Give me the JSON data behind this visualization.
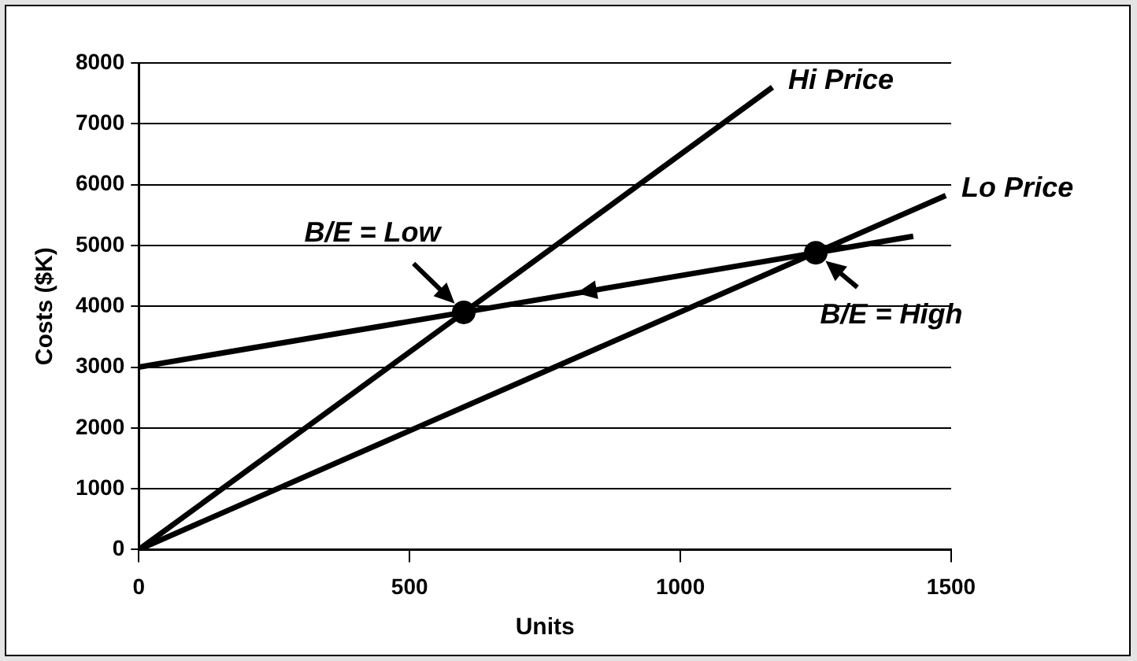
{
  "chart_data": {
    "type": "line",
    "xlabel": "Units",
    "ylabel": "Costs ($K)",
    "xlim": [
      0,
      1500
    ],
    "xticks": [
      0,
      500,
      1000,
      1500
    ],
    "ylim": [
      0,
      8000
    ],
    "yticks": [
      0,
      1000,
      2000,
      3000,
      4000,
      5000,
      6000,
      7000,
      8000
    ],
    "grid": "y",
    "legend": false,
    "series": [
      {
        "color": "#000000",
        "x": [
          0,
          1430
        ],
        "values": [
          3000,
          5150
        ]
      },
      {
        "name": "Hi Price",
        "color": "#000000",
        "x": [
          0,
          1170
        ],
        "values": [
          0,
          7600
        ]
      },
      {
        "name": "Lo Price",
        "color": "#000000",
        "x": [
          0,
          1490
        ],
        "values": [
          0,
          5820
        ]
      },
      {
        "type": "scatter",
        "marker": "circle",
        "color": "#000000",
        "x": [
          600,
          1250
        ],
        "values": [
          3900,
          4880
        ]
      }
    ],
    "annotations": [
      {
        "text": "B/E = Low",
        "x": 600,
        "y": 3900
      },
      {
        "text": "B/E = High",
        "x": 1250,
        "y": 4880
      }
    ]
  }
}
